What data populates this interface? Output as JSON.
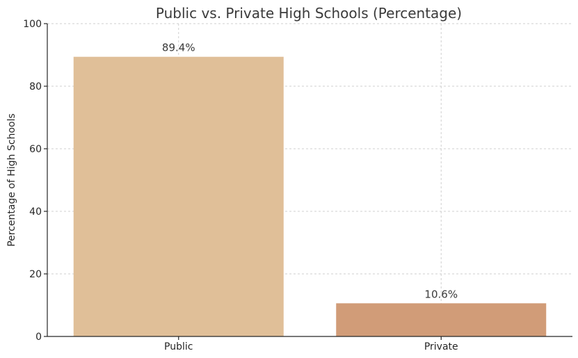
{
  "chart_data": {
    "type": "bar",
    "title": "Public vs. Private High Schools (Percentage)",
    "xlabel": "",
    "ylabel": "Percentage of High Schools",
    "categories": [
      "Public",
      "Private"
    ],
    "values": [
      89.4,
      10.6
    ],
    "value_labels": [
      "89.4%",
      "10.6%"
    ],
    "colors": [
      "#e0bf98",
      "#d19c78"
    ],
    "ylim": [
      0,
      100
    ],
    "yticks": [
      0,
      20,
      40,
      60,
      80,
      100
    ],
    "grid": true
  }
}
